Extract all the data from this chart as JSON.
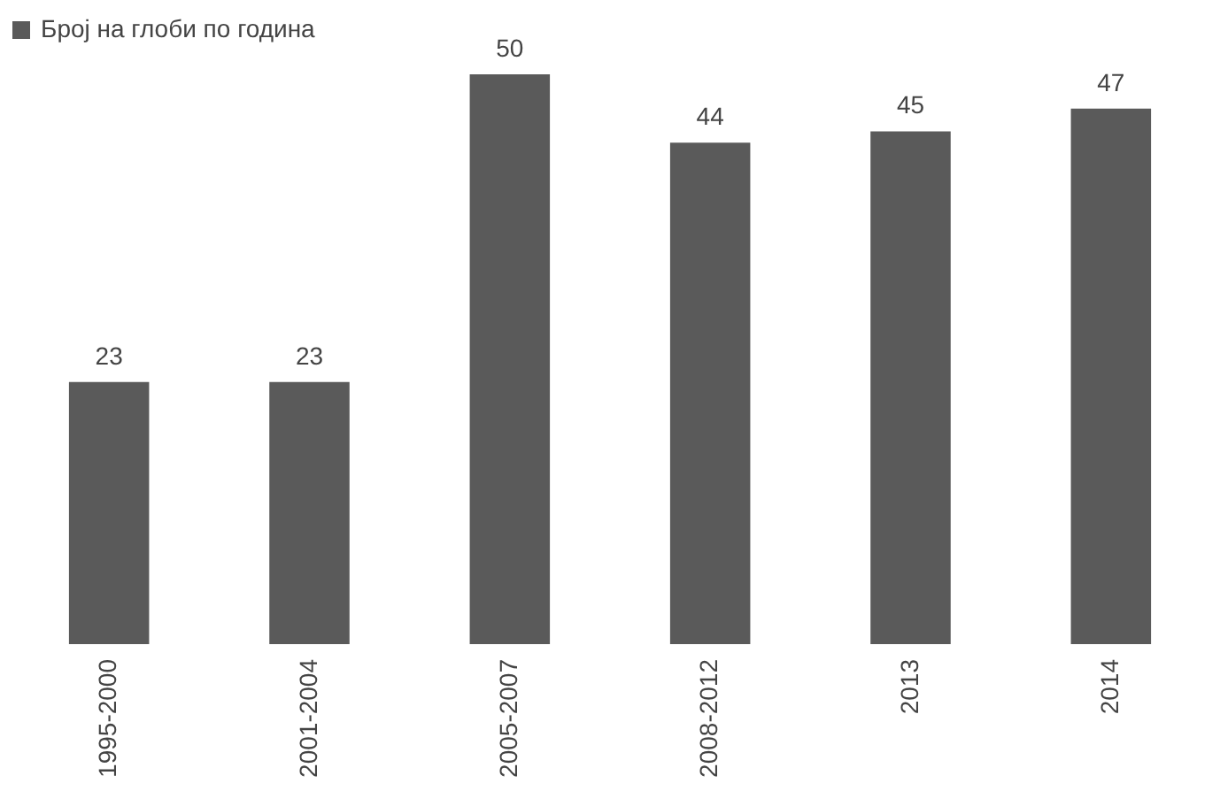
{
  "chart_data": {
    "type": "bar",
    "categories": [
      "1995-2000",
      "2001-2004",
      "2005-2007",
      "2008-2012",
      "2013",
      "2014"
    ],
    "series": [
      {
        "name": "Број на глоби по година",
        "color": "#5a5a5a",
        "values": [
          23,
          23,
          50,
          44,
          45,
          47
        ]
      }
    ],
    "data_labels": true,
    "legend": "top"
  }
}
